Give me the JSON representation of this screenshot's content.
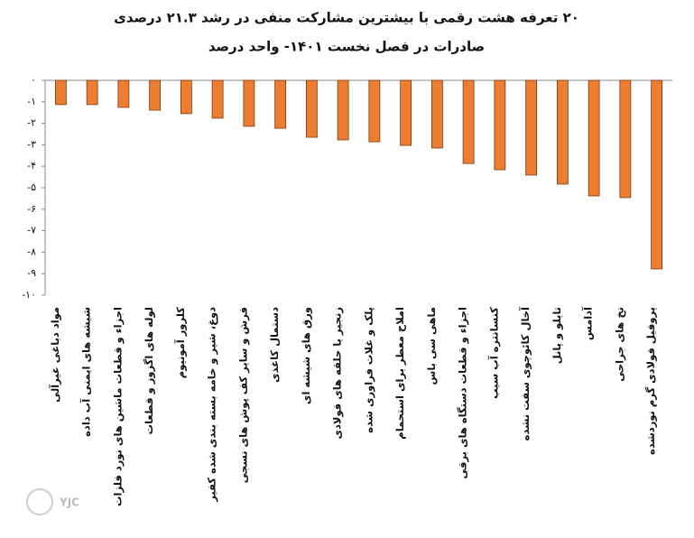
{
  "chart_data": {
    "type": "bar",
    "title": "۲۰ تعرفه هشت رقمی با بیشترین مشارکت منفی در رشد ۲۱.۳ درصدی",
    "subtitle": "صادرات در فصل نخست ۱۴۰۱- واحد درصد",
    "categories": [
      "مواد دباغی غیرآلی",
      "شیشه های ایمنی آب داده",
      "اجزاء و قطعات ماشین های نورد فلزات",
      "لوله های اگزوز و قطعات",
      "کلرور آمونیوم",
      "دوغ، شیر و خامه بسته بندی شده کفیر",
      "فرش و سایر کف پوش های نسجی",
      "دستمال کاغذی",
      "ورق های شیشه ای",
      "زنجیر یا حلقه های فولادی",
      "پلک و غلات فراوری شده",
      "املاح معطر برای استحمام",
      "ماهی سی باس",
      "اجزاء و قطعات دستگاه های برقی",
      "کنسانتره آب سیب",
      "آخال کائوچوی سفت نشده",
      "تابلو و پانل",
      "آدامس",
      "نخ های جراحی",
      "پروفیل فولادی گرم نوردشده"
    ],
    "values": [
      -1.13,
      -1.13,
      -1.26,
      -1.39,
      -1.55,
      -1.76,
      -2.14,
      -2.23,
      -2.65,
      -2.77,
      -2.86,
      -3.03,
      -3.15,
      -3.87,
      -4.16,
      -4.41,
      -4.83,
      -5.38,
      -5.46,
      -8.78
    ],
    "color": "#ed7d31",
    "ylim": [
      -10,
      0
    ],
    "yticks": [
      {
        "value": 0,
        "label": "۰"
      },
      {
        "value": -1,
        "label": "-۱"
      },
      {
        "value": -2,
        "label": "-۲"
      },
      {
        "value": -3,
        "label": "-۳"
      },
      {
        "value": -4,
        "label": "-۴"
      },
      {
        "value": -5,
        "label": "-۵"
      },
      {
        "value": -6,
        "label": "-۶"
      },
      {
        "value": -7,
        "label": "-۷"
      },
      {
        "value": -8,
        "label": "-۸"
      },
      {
        "value": -9,
        "label": "-۹"
      },
      {
        "value": -10,
        "label": "-۱۰"
      }
    ],
    "grid": false,
    "watermark": "YJC"
  }
}
